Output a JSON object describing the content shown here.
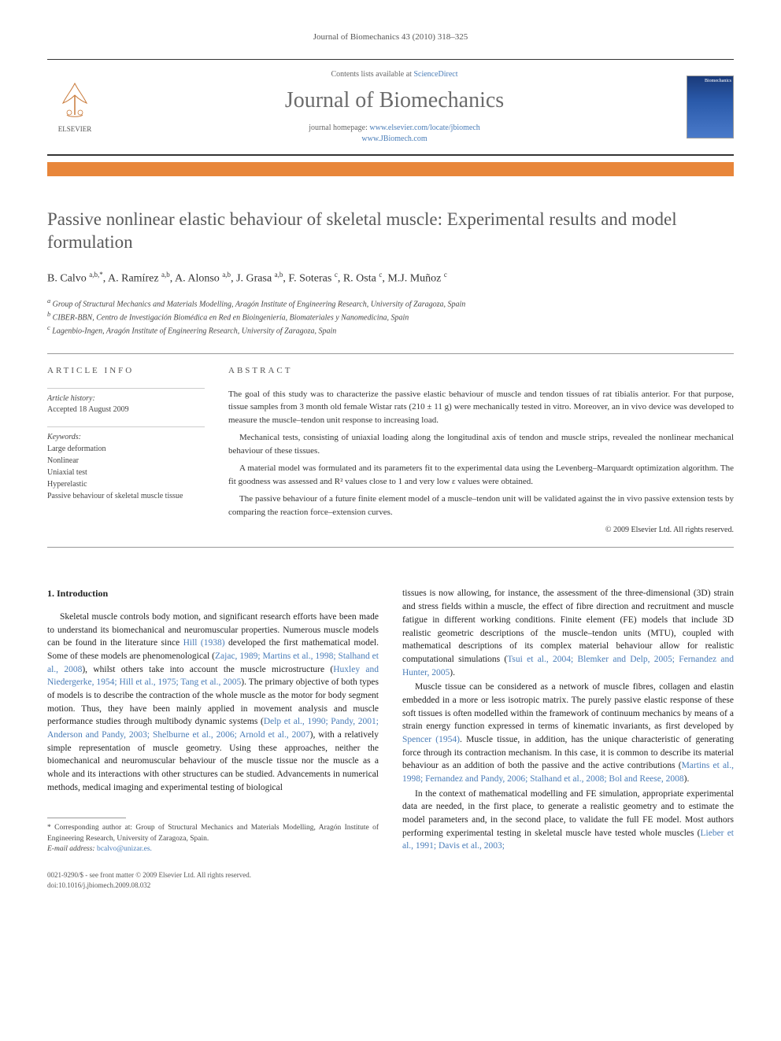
{
  "running_header": "Journal of Biomechanics 43 (2010) 318–325",
  "header": {
    "contents_prefix": "Contents lists available at ",
    "contents_link": "ScienceDirect",
    "journal_name": "Journal of Biomechanics",
    "homepage_prefix": "journal homepage: ",
    "homepage_url1": "www.elsevier.com/locate/jbiomech",
    "homepage_url2": "www.JBiomech.com",
    "elsevier_label": "ELSEVIER",
    "cover_label": "Biomechanics"
  },
  "title": "Passive nonlinear elastic behaviour of skeletal muscle: Experimental results and model formulation",
  "authors_html": "B. Calvo <sup>a,b,*</sup>, A. Ramírez <sup>a,b</sup>, A. Alonso <sup>a,b</sup>, J. Grasa <sup>a,b</sup>, F. Soteras <sup>c</sup>, R. Osta <sup>c</sup>, M.J. Muñoz <sup>c</sup>",
  "affiliations": [
    "a Group of Structural Mechanics and Materials Modelling, Aragón Institute of Engineering Research, University of Zaragoza, Spain",
    "b CIBER-BBN, Centro de Investigación Biomédica en Red en Bioingeniería, Biomateriales y Nanomedicina, Spain",
    "c Lagenbio-Ingen, Aragón Institute of Engineering Research, University of Zaragoza, Spain"
  ],
  "article_info": {
    "label": "ARTICLE INFO",
    "history_label": "Article history:",
    "history_value": "Accepted 18 August 2009",
    "keywords_label": "Keywords:",
    "keywords": [
      "Large deformation",
      "Nonlinear",
      "Uniaxial test",
      "Hyperelastic",
      "Passive behaviour of skeletal muscle tissue"
    ]
  },
  "abstract": {
    "label": "ABSTRACT",
    "paragraphs": [
      "The goal of this study was to characterize the passive elastic behaviour of muscle and tendon tissues of rat tibialis anterior. For that purpose, tissue samples from 3 month old female Wistar rats (210 ± 11 g) were mechanically tested in vitro. Moreover, an in vivo device was developed to measure the muscle–tendon unit response to increasing load.",
      "Mechanical tests, consisting of uniaxial loading along the longitudinal axis of tendon and muscle strips, revealed the nonlinear mechanical behaviour of these tissues.",
      "A material model was formulated and its parameters fit to the experimental data using the Levenberg–Marquardt optimization algorithm. The fit goodness was assessed and R² values close to 1 and very low ε values were obtained.",
      "The passive behaviour of a future finite element model of a muscle–tendon unit will be validated against the in vivo passive extension tests by comparing the reaction force–extension curves."
    ],
    "copyright": "© 2009 Elsevier Ltd. All rights reserved."
  },
  "body": {
    "intro_heading": "1. Introduction",
    "col1_p1_a": "Skeletal muscle controls body motion, and significant research efforts have been made to understand its biomechanical and neuromuscular properties. Numerous muscle models can be found in the literature since ",
    "col1_cite1": "Hill (1938)",
    "col1_p1_b": " developed the first mathematical model. Some of these models are phenomenological (",
    "col1_cite2": "Zajac, 1989; Martins et al., 1998; Stalhand et al., 2008",
    "col1_p1_c": "), whilst others take into account the muscle microstructure (",
    "col1_cite3": "Huxley and Niedergerke, 1954; Hill et al., 1975; Tang et al., 2005",
    "col1_p1_d": "). The primary objective of both types of models is to describe the contraction of the whole muscle as the motor for body segment motion. Thus, they have been mainly applied in movement analysis and muscle performance studies through multibody dynamic systems (",
    "col1_cite4": "Delp et al., 1990; Pandy, 2001; Anderson and Pandy, 2003; Shelburne et al., 2006; Arnold et al., 2007",
    "col1_p1_e": "), with a relatively simple representation of muscle geometry. Using these approaches, neither the biomechanical and neuromuscular behaviour of the muscle tissue nor the muscle as a whole and its interactions with other structures can be studied. Advancements in numerical methods, medical imaging and experimental testing of biological",
    "col2_p1_a": "tissues is now allowing, for instance, the assessment of the three-dimensional (3D) strain and stress fields within a muscle, the effect of fibre direction and recruitment and muscle fatigue in different working conditions. Finite element (FE) models that include 3D realistic geometric descriptions of the muscle–tendon units (MTU), coupled with mathematical descriptions of its complex material behaviour allow for realistic computational simulations (",
    "col2_cite1": "Tsui et al., 2004; Blemker and Delp, 2005; Fernandez and Hunter, 2005",
    "col2_p1_b": ").",
    "col2_p2_a": "Muscle tissue can be considered as a network of muscle fibres, collagen and elastin embedded in a more or less isotropic matrix. The purely passive elastic response of these soft tissues is often modelled within the framework of continuum mechanics by means of a strain energy function expressed in terms of kinematic invariants, as first developed by ",
    "col2_cite2": "Spencer (1954)",
    "col2_p2_b": ". Muscle tissue, in addition, has the unique characteristic of generating force through its contraction mechanism. In this case, it is common to describe its material behaviour as an addition of both the passive and the active contributions (",
    "col2_cite3": "Martins et al., 1998; Fernandez and Pandy, 2006; Stalhand et al., 2008; Bol and Reese, 2008",
    "col2_p2_c": ").",
    "col2_p3_a": "In the context of mathematical modelling and FE simulation, appropriate experimental data are needed, in the first place, to generate a realistic geometry and to estimate the model parameters and, in the second place, to validate the full FE model. Most authors performing experimental testing in skeletal muscle have tested whole muscles (",
    "col2_cite4": "Lieber et al., 1991; Davis et al., 2003;"
  },
  "footnote": {
    "text_a": "* Corresponding author at: Group of Structural Mechanics and Materials Modelling, Aragón Institute of Engineering Research, University of Zaragoza, Spain.",
    "email_label": "E-mail address: ",
    "email": "bcalvo@unizar.es."
  },
  "bottom": {
    "line1": "0021-9290/$ - see front matter © 2009 Elsevier Ltd. All rights reserved.",
    "line2": "doi:10.1016/j.jbiomech.2009.08.032"
  },
  "colors": {
    "orange_bar": "#e8863a",
    "link": "#4a7db8",
    "title_grey": "#5a5a5a"
  }
}
